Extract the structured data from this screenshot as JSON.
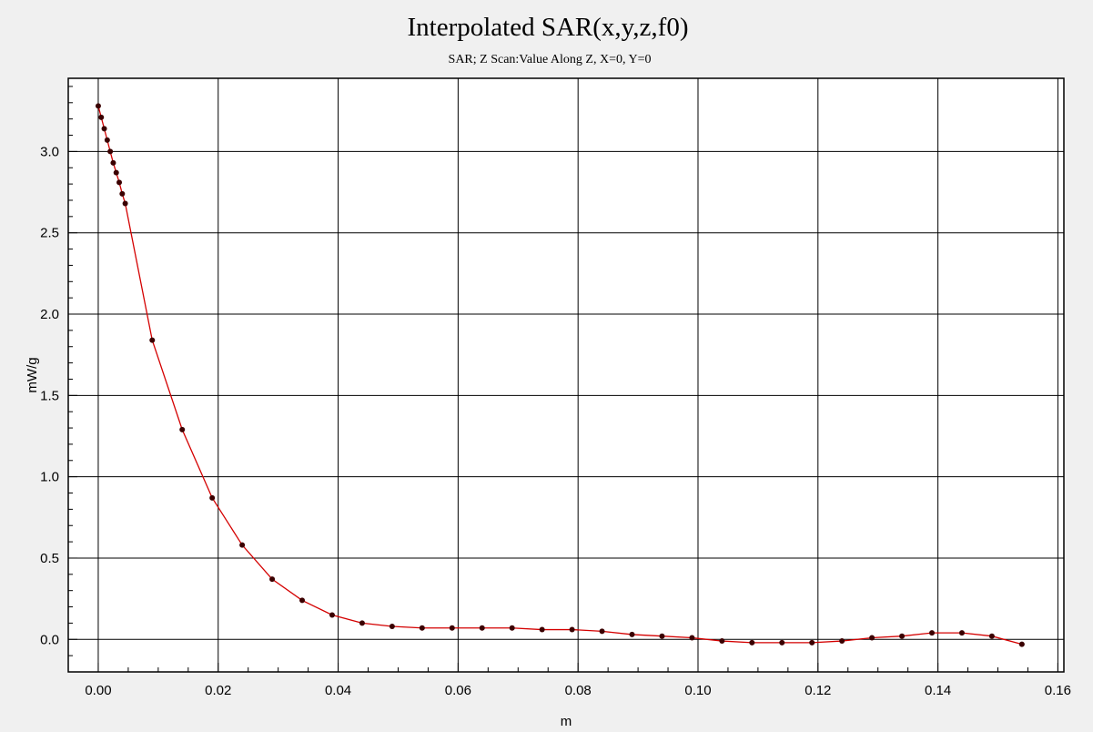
{
  "chart_data": {
    "type": "line",
    "title": "Interpolated SAR(x,y,z,f0)",
    "subtitle": "SAR; Z Scan:Value Along Z, X=0, Y=0",
    "xlabel": "m",
    "ylabel": "mW/g",
    "xlim": [
      -0.005,
      0.161
    ],
    "ylim": [
      -0.2,
      3.45
    ],
    "xticks": [
      0.0,
      0.02,
      0.04,
      0.06,
      0.08,
      0.1,
      0.12,
      0.14,
      0.16
    ],
    "xtick_labels": [
      "0.00",
      "0.02",
      "0.04",
      "0.06",
      "0.08",
      "0.10",
      "0.12",
      "0.14",
      "0.16"
    ],
    "yticks": [
      0.0,
      0.5,
      1.0,
      1.5,
      2.0,
      2.5,
      3.0
    ],
    "ytick_labels": [
      "0.0",
      "0.5",
      "1.0",
      "1.5",
      "2.0",
      "2.5",
      "3.0"
    ],
    "grid": true,
    "series": [
      {
        "color": "#d40000",
        "marker_color": "#3a0000",
        "x": [
          0.0,
          0.0005,
          0.001,
          0.0015,
          0.002,
          0.0025,
          0.003,
          0.0035,
          0.004,
          0.0045,
          0.009,
          0.014,
          0.019,
          0.024,
          0.029,
          0.034,
          0.039,
          0.044,
          0.049,
          0.054,
          0.059,
          0.064,
          0.069,
          0.074,
          0.079,
          0.084,
          0.089,
          0.094,
          0.099,
          0.104,
          0.109,
          0.114,
          0.119,
          0.124,
          0.129,
          0.134,
          0.139,
          0.144,
          0.149,
          0.154
        ],
        "y": [
          3.28,
          3.21,
          3.14,
          3.07,
          3.0,
          2.93,
          2.87,
          2.81,
          2.74,
          2.68,
          1.84,
          1.29,
          0.87,
          0.58,
          0.37,
          0.24,
          0.15,
          0.1,
          0.08,
          0.07,
          0.07,
          0.07,
          0.07,
          0.06,
          0.06,
          0.05,
          0.03,
          0.02,
          0.01,
          -0.01,
          -0.02,
          -0.02,
          -0.02,
          -0.01,
          0.01,
          0.02,
          0.04,
          0.04,
          0.02,
          -0.03
        ]
      }
    ]
  }
}
